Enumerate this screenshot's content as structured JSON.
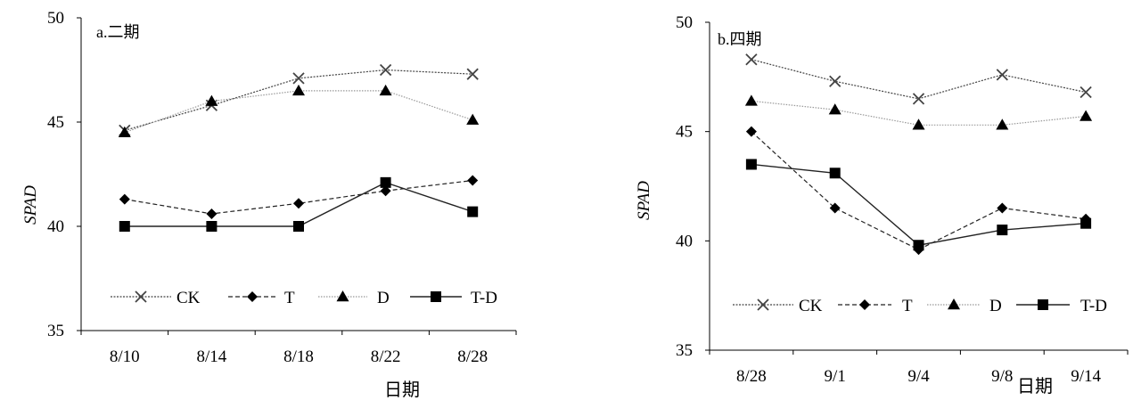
{
  "chart_data": [
    {
      "type": "line",
      "panel_label": "a.二期",
      "xlabel": "日期",
      "ylabel": "SPAD",
      "categories": [
        "8/10",
        "8/14",
        "8/18",
        "8/22",
        "8/28"
      ],
      "ylim": [
        35,
        50
      ],
      "yticks": [
        "35",
        "40",
        "45",
        "50"
      ],
      "legend_position": "bottom",
      "series": [
        {
          "name": "CK",
          "marker": "x",
          "line": "dotted-dense",
          "values": [
            44.6,
            45.8,
            47.1,
            47.5,
            47.3
          ]
        },
        {
          "name": "T",
          "marker": "diamond",
          "line": "dashed",
          "values": [
            41.3,
            40.6,
            41.1,
            41.7,
            42.2
          ]
        },
        {
          "name": "D",
          "marker": "triangle",
          "line": "dotted-light",
          "values": [
            44.5,
            46.0,
            46.5,
            46.5,
            45.1
          ]
        },
        {
          "name": "T-D",
          "marker": "square",
          "line": "solid",
          "values": [
            40.0,
            40.0,
            40.0,
            42.1,
            40.7
          ]
        }
      ]
    },
    {
      "type": "line",
      "panel_label": "b.四期",
      "xlabel": "日期",
      "ylabel": "SPAD",
      "categories": [
        "8/28",
        "9/1",
        "9/4",
        "9/8",
        "9/14"
      ],
      "ylim": [
        35,
        50
      ],
      "yticks": [
        "35",
        "40",
        "45",
        "50"
      ],
      "legend_position": "bottom",
      "series": [
        {
          "name": "CK",
          "marker": "x",
          "line": "dotted-dense",
          "values": [
            48.3,
            47.3,
            46.5,
            47.6,
            46.8
          ]
        },
        {
          "name": "T",
          "marker": "diamond",
          "line": "dashed",
          "values": [
            45.0,
            41.5,
            39.6,
            41.5,
            41.0
          ]
        },
        {
          "name": "D",
          "marker": "triangle",
          "line": "dotted-light",
          "values": [
            46.4,
            46.0,
            45.3,
            45.3,
            45.7
          ]
        },
        {
          "name": "T-D",
          "marker": "square",
          "line": "solid",
          "values": [
            43.5,
            43.1,
            39.8,
            40.5,
            40.8
          ]
        }
      ]
    }
  ]
}
